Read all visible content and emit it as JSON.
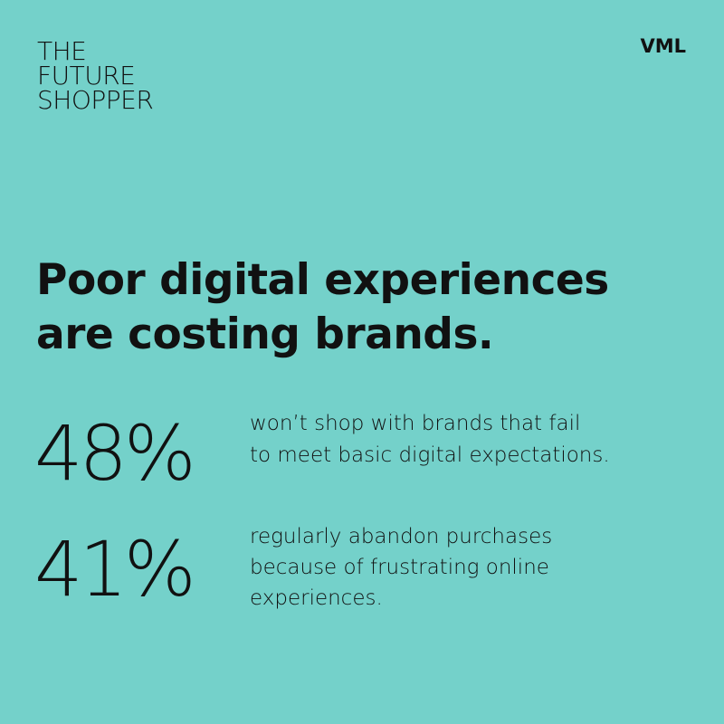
{
  "logo": {
    "lines": [
      "THE",
      "FUTURE",
      "SHOPPER"
    ]
  },
  "brand": "VML",
  "headline": {
    "lines": [
      "Poor digital experiences",
      "are costing brands."
    ]
  },
  "stats": [
    {
      "value": "48%",
      "lines": [
        "won’t shop with brands that fail",
        "to meet basic digital expectations."
      ]
    },
    {
      "value": "41%",
      "lines": [
        "regularly abandon purchases",
        "because of frustrating online",
        "experiences."
      ]
    }
  ]
}
